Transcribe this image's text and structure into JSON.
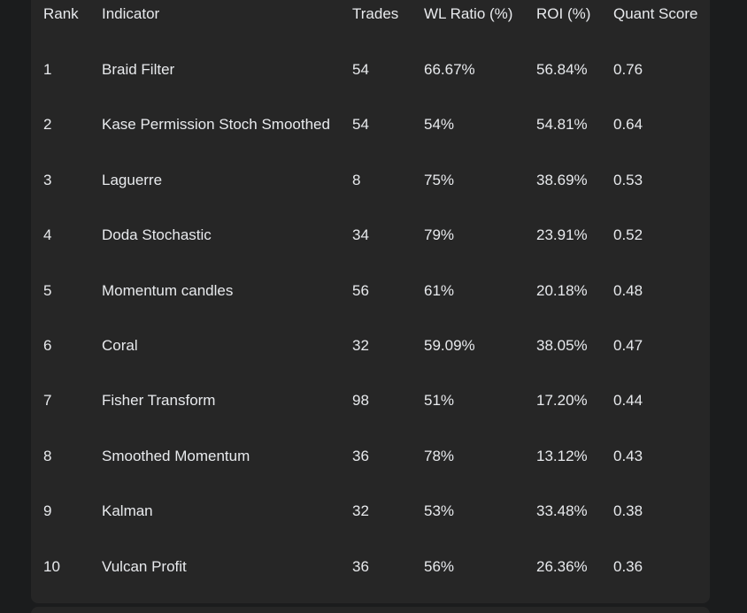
{
  "table": {
    "headers": {
      "rank": "Rank",
      "indicator": "Indicator",
      "trades": "Trades",
      "wl_ratio": "WL Ratio (%)",
      "roi": "ROI (%)",
      "quant_score": "Quant Score"
    },
    "rows": [
      {
        "rank": "1",
        "indicator": "Braid Filter",
        "trades": "54",
        "wl_ratio": "66.67%",
        "roi": "56.84%",
        "quant_score": "0.76"
      },
      {
        "rank": "2",
        "indicator": "Kase Permission Stoch Smoothed",
        "trades": "54",
        "wl_ratio": "54%",
        "roi": "54.81%",
        "quant_score": "0.64"
      },
      {
        "rank": "3",
        "indicator": "Laguerre",
        "trades": "8",
        "wl_ratio": "75%",
        "roi": "38.69%",
        "quant_score": "0.53"
      },
      {
        "rank": "4",
        "indicator": "Doda Stochastic",
        "trades": "34",
        "wl_ratio": "79%",
        "roi": "23.91%",
        "quant_score": "0.52"
      },
      {
        "rank": "5",
        "indicator": "Momentum candles",
        "trades": "56",
        "wl_ratio": "61%",
        "roi": "20.18%",
        "quant_score": "0.48"
      },
      {
        "rank": "6",
        "indicator": "Coral",
        "trades": "32",
        "wl_ratio": "59.09%",
        "roi": "38.05%",
        "quant_score": "0.47"
      },
      {
        "rank": "7",
        "indicator": "Fisher Transform",
        "trades": "98",
        "wl_ratio": "51%",
        "roi": "17.20%",
        "quant_score": "0.44"
      },
      {
        "rank": "8",
        "indicator": "Smoothed Momentum",
        "trades": "36",
        "wl_ratio": "78%",
        "roi": "13.12%",
        "quant_score": "0.43"
      },
      {
        "rank": "9",
        "indicator": "Kalman",
        "trades": "32",
        "wl_ratio": "53%",
        "roi": "33.48%",
        "quant_score": "0.38"
      },
      {
        "rank": "10",
        "indicator": "Vulcan Profit",
        "trades": "36",
        "wl_ratio": "56%",
        "roi": "26.36%",
        "quant_score": "0.36"
      }
    ]
  }
}
